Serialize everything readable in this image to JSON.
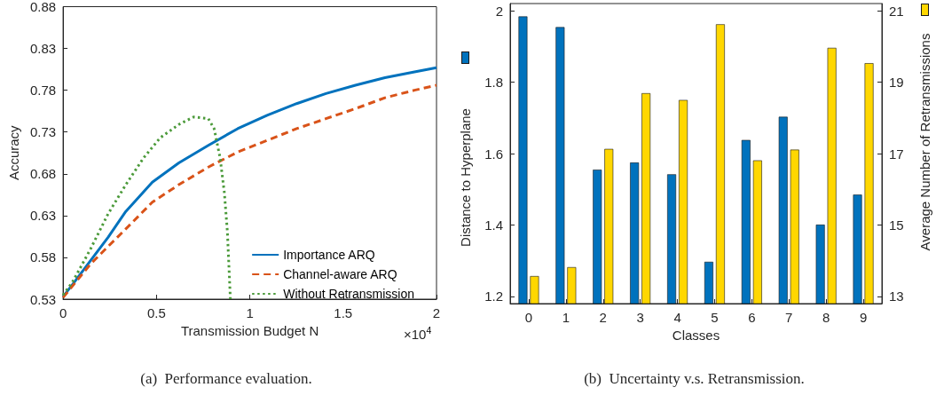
{
  "chart_data": [
    {
      "type": "line",
      "xlabel": "Transmission Budget N",
      "ylabel": "Accuracy",
      "xlim": [
        0,
        2
      ],
      "xticks": [
        0,
        0.5,
        1,
        1.5,
        2
      ],
      "ylim": [
        0.53,
        0.88
      ],
      "yticks": [
        0.53,
        0.58,
        0.63,
        0.68,
        0.73,
        0.78,
        0.83,
        0.88
      ],
      "grid": false,
      "legend": "bottom right",
      "marker": "none",
      "annotations": [
        "×10$^{4}$",
        "(a)  Performance evaluation."
      ],
      "series": [
        {
          "name": "Importance ARQ",
          "color": "#0072bd",
          "line_style": "solid",
          "x": [
            0,
            0.052,
            0.147,
            0.241,
            0.336,
            0.478,
            0.62,
            0.778,
            0.935,
            1.093,
            1.251,
            1.408,
            1.566,
            1.724,
            1.882,
            2
          ],
          "values": [
            0.533,
            0.548,
            0.576,
            0.604,
            0.635,
            0.67,
            0.693,
            0.714,
            0.734,
            0.75,
            0.764,
            0.776,
            0.786,
            0.795,
            0.802,
            0.807
          ]
        },
        {
          "name": "Channel-aware ARQ",
          "color": "#d95319",
          "line_style": "dashed",
          "x": [
            0,
            0.147,
            0.241,
            0.336,
            0.478,
            0.62,
            0.778,
            0.935,
            1.093,
            1.251,
            1.408,
            1.566,
            1.724,
            1.882,
            2
          ],
          "values": [
            0.532,
            0.572,
            0.593,
            0.614,
            0.646,
            0.667,
            0.688,
            0.706,
            0.72,
            0.734,
            0.746,
            0.758,
            0.771,
            0.78,
            0.786
          ]
        },
        {
          "name": "Without Retransmission",
          "color": "#4b9a3a",
          "line_style": "dotted",
          "x": [
            0,
            0.052,
            0.147,
            0.241,
            0.336,
            0.431,
            0.52,
            0.62,
            0.699,
            0.778,
            0.809,
            0.841,
            0.864,
            0.88,
            0.896
          ],
          "values": [
            0.535,
            0.551,
            0.59,
            0.632,
            0.667,
            0.699,
            0.723,
            0.739,
            0.748,
            0.746,
            0.734,
            0.699,
            0.657,
            0.611,
            0.53
          ]
        }
      ]
    },
    {
      "type": "bar",
      "xlabel": "Classes",
      "ylabel": "Distance to Hyperplane",
      "y2label": "Average Number of Retransmissions",
      "categories": [
        "0",
        "1",
        "2",
        "3",
        "4",
        "5",
        "6",
        "7",
        "8",
        "9"
      ],
      "ylim": [
        1.18,
        2.02
      ],
      "yticks": [
        1.2,
        1.4,
        1.6,
        1.8,
        2
      ],
      "y2lim": [
        12.8,
        21.2
      ],
      "y2ticks": [
        13,
        15,
        17,
        19,
        21
      ],
      "grid": false,
      "legend": false,
      "annotations": [
        "(b)  Uncertainty v.s. Retransmission."
      ],
      "series": [
        {
          "color": "#0072bd",
          "values": [
            1.984,
            1.954,
            1.555,
            1.575,
            1.542,
            1.297,
            1.638,
            1.703,
            1.401,
            1.485
          ]
        },
        {
          "color": "#ffd700",
          "axis": "y2",
          "values": [
            13.57,
            13.82,
            17.13,
            18.69,
            18.5,
            20.62,
            16.81,
            17.11,
            19.96,
            19.53
          ]
        }
      ]
    }
  ]
}
